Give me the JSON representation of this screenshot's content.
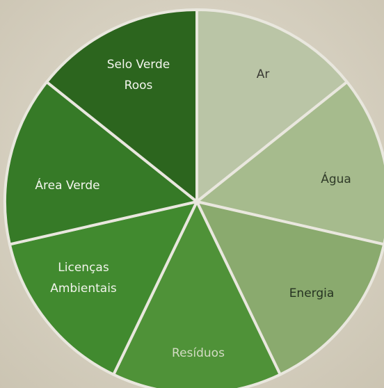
{
  "wheel": {
    "segments": [
      {
        "lines": [
          "Ar"
        ],
        "color": "#bac5a6",
        "text_color": "#3a3a34"
      },
      {
        "lines": [
          "Água"
        ],
        "color": "#a6bb8d",
        "text_color": "#2f3a28"
      },
      {
        "lines": [
          "Energia"
        ],
        "color": "#8aaa6e",
        "text_color": "#263322"
      },
      {
        "lines": [
          "Resíduos"
        ],
        "color": "#4f9238",
        "text_color": "#d3dcc4"
      },
      {
        "lines": [
          "Licenças",
          "Ambientais"
        ],
        "color": "#418a2f",
        "text_color": "#f2f4ec"
      },
      {
        "lines": [
          "Área Verde"
        ],
        "color": "#367a27",
        "text_color": "#f4f6ef"
      },
      {
        "lines": [
          "Selo Verde",
          "Roos"
        ],
        "color": "#2c651e",
        "text_color": "#f4f6ef"
      }
    ]
  }
}
